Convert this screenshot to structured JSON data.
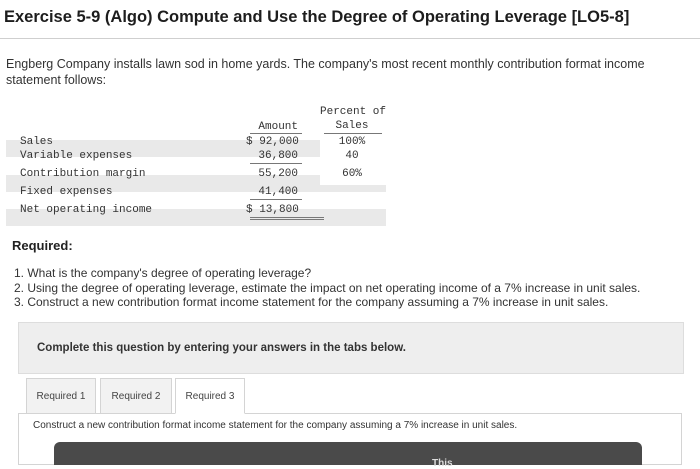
{
  "header": {
    "title": "Exercise 5-9 (Algo) Compute and Use the Degree of Operating Leverage [LO5-8]"
  },
  "intro": "Engberg Company installs lawn sod in home yards. The company's most recent monthly contribution format income statement follows:",
  "statement": {
    "col_amount": "Amount",
    "col_percent_line1": "Percent of",
    "col_percent_line2": "Sales",
    "rows": [
      {
        "label": "Sales",
        "amount": "$ 92,000",
        "percent": "100%"
      },
      {
        "label": "Variable expenses",
        "amount": "36,800",
        "percent": "40"
      },
      {
        "label": "Contribution margin",
        "amount": "55,200",
        "percent": "60%"
      },
      {
        "label": "Fixed expenses",
        "amount": "41,400",
        "percent": ""
      },
      {
        "label": "Net operating income",
        "amount": "$ 13,800",
        "percent": ""
      }
    ]
  },
  "required": {
    "heading": "Required:",
    "items": [
      "1. What is the company's degree of operating leverage?",
      "2. Using the degree of operating leverage, estimate the impact on net operating income of a 7% increase in unit sales.",
      "3. Construct a new contribution format income statement for the company assuming a 7% increase in unit sales."
    ]
  },
  "instructions": "Complete this question by entering your answers in the tabs below.",
  "tabs": [
    {
      "label": "Required 1",
      "active": false
    },
    {
      "label": "Required 2",
      "active": false
    },
    {
      "label": "Required 3",
      "active": true
    }
  ],
  "panel": {
    "text": "Construct a new contribution format income statement for the company assuming a 7% increase in unit sales."
  },
  "bottom_bar": {
    "partial_text": "This"
  }
}
